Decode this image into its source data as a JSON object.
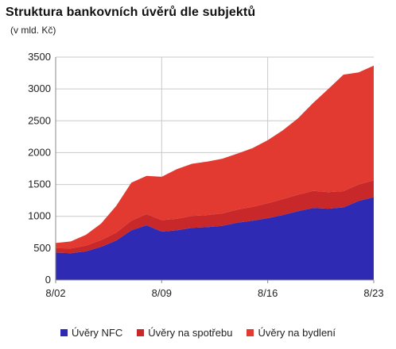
{
  "chart_data": {
    "type": "area",
    "stacked": true,
    "title": "Struktura bankovních úvěrů dle subjektů",
    "subtitle": "(v mld. Kč)",
    "xlabel": "",
    "ylabel": "",
    "x_ticks": [
      "8/02",
      "8/09",
      "8/16",
      "8/23"
    ],
    "y_ticks": [
      0,
      500,
      1000,
      1500,
      2000,
      2500,
      3000,
      3500
    ],
    "ylim": [
      0,
      3500
    ],
    "grid": true,
    "legend_position": "bottom",
    "x": [
      2002.0,
      2003.0,
      2004.0,
      2005.0,
      2006.0,
      2007.0,
      2008.0,
      2009.0,
      2010.0,
      2011.0,
      2012.0,
      2013.0,
      2014.0,
      2015.0,
      2016.0,
      2017.0,
      2018.0,
      2019.0,
      2020.0,
      2021.0,
      2022.0,
      2023.0
    ],
    "series": [
      {
        "name": "Úvěry NFC",
        "color": "#2e2ab4",
        "values": [
          430,
          420,
          450,
          520,
          620,
          780,
          860,
          760,
          780,
          820,
          830,
          850,
          900,
          930,
          970,
          1020,
          1080,
          1130,
          1120,
          1140,
          1240,
          1300
        ]
      },
      {
        "name": "Úvěry na spotřebu",
        "color": "#c8282a",
        "values": [
          70,
          75,
          90,
          105,
          125,
          150,
          175,
          180,
          180,
          185,
          190,
          195,
          205,
          220,
          235,
          250,
          260,
          270,
          260,
          255,
          260,
          265
        ]
      },
      {
        "name": "Úvěry na bydlení",
        "color": "#e23a30",
        "values": [
          80,
          110,
          170,
          260,
          420,
          600,
          600,
          680,
          780,
          820,
          840,
          860,
          880,
          920,
          990,
          1080,
          1200,
          1380,
          1620,
          1830,
          1760,
          1800
        ]
      }
    ]
  }
}
